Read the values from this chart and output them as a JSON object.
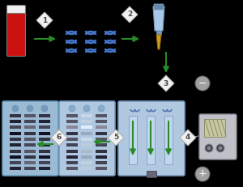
{
  "bg_color": "#000000",
  "tube_red": "#cc1111",
  "tube_white": "#f0f0f0",
  "tube_border": "#777777",
  "dna_color": "#4477cc",
  "pipette_body": "#a8c8e8",
  "pipette_dark": "#7799bb",
  "pipette_tip": "#c8a020",
  "pipette_btn": "#6688aa",
  "arrow_color": "#2a8a2a",
  "diamond_fc": "#f0f0f0",
  "diamond_ec": "#aaaaaa",
  "diamond_text": "#444444",
  "gel_box_bg": "#b0c8e0",
  "gel_box_border": "#7799bb",
  "gel_lane_bg": "#c0d8ee",
  "gel_lane_border": "#8899bb",
  "gel_arrow_color": "#6688aa",
  "gel_top_marks": "#5577aa",
  "fp5_bg": "#afc8e0",
  "fp5_border": "#7799bb",
  "fp5_top_dot": "#88aacc",
  "fp5_band_dark": "#555566",
  "fp5_band_med": "#8899aa",
  "fp5_band_light": "#c8d8e8",
  "fp5_band_white": "#ddeeff",
  "fp6_bg": "#9bbbd4",
  "fp6_border": "#6699bb",
  "fp6_top_dot": "#7799bb",
  "fp6_band_d1": "#333344",
  "fp6_band_d2": "#222233",
  "fp6_band_d3": "#444455",
  "fp6_band_d4": "#111122",
  "electrode_fc": "#a0a0a0",
  "electrode_ec": "#666666",
  "electrode_text": "#ffffff",
  "device_bg": "#c0c0c8",
  "device_border": "#888890",
  "device_screen_bg": "#c8c8a0",
  "device_screen_lines": "#888860",
  "device_knob": "#444450",
  "device_knob2": "#888890"
}
